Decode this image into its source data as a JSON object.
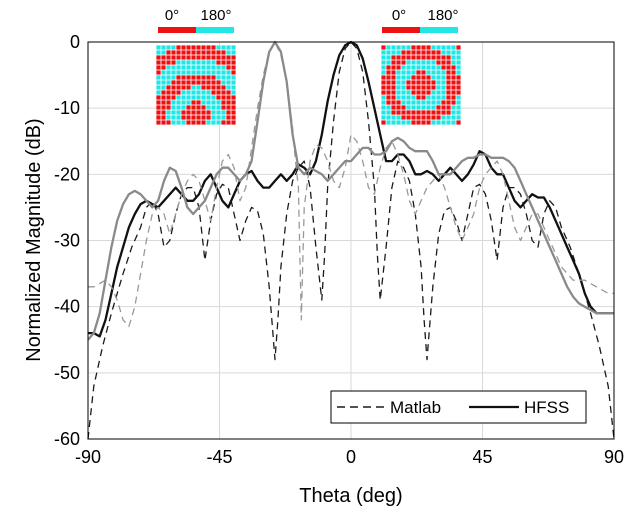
{
  "chart_data": {
    "type": "line",
    "xlabel": "Theta (deg)",
    "ylabel": "Normalized Magnitude (dB)",
    "xlim": [
      -90,
      90
    ],
    "ylim": [
      -60,
      0
    ],
    "xticks": [
      "-90",
      "-45",
      "0",
      "45",
      "90"
    ],
    "yticks": [
      "0",
      "-10",
      "-20",
      "-30",
      "-40",
      "-50",
      "-60"
    ],
    "grid": true,
    "legend": {
      "placement": "bottom-right",
      "entries": [
        {
          "label": "Matlab",
          "style": "dashed"
        },
        {
          "label": "HFSS",
          "style": "solid"
        }
      ]
    },
    "insets": [
      {
        "colorbar_labels": [
          "0°",
          "180°"
        ],
        "colors": {
          "zero": "#ee1111",
          "pi": "#22e5e5"
        },
        "pattern": "off-axis"
      },
      {
        "colorbar_labels": [
          "0°",
          "180°"
        ],
        "colors": {
          "zero": "#ee1111",
          "pi": "#22e5e5"
        },
        "pattern": "broadside"
      }
    ],
    "series": [
      {
        "group": "broadside",
        "source": "Matlab",
        "color": "#1a1a1a",
        "dash": "7,5",
        "width": 1.3,
        "x": [
          -90,
          -88,
          -85,
          -82,
          -80,
          -78,
          -75,
          -72,
          -70,
          -68,
          -66,
          -64,
          -62,
          -60,
          -58,
          -56,
          -54,
          -52,
          -50,
          -48,
          -46,
          -44,
          -42,
          -40,
          -38,
          -36,
          -34,
          -32,
          -30,
          -28,
          -26,
          -25,
          -24,
          -22,
          -20,
          -18,
          -16,
          -14,
          -12,
          -10,
          -9,
          -8,
          -6,
          -4,
          -2,
          0,
          2,
          4,
          6,
          8,
          9,
          10,
          12,
          14,
          16,
          18,
          20,
          22,
          24,
          25,
          26,
          28,
          30,
          32,
          34,
          36,
          38,
          40,
          42,
          44,
          46,
          48,
          50,
          52,
          54,
          56,
          58,
          60,
          62,
          64,
          66,
          68,
          70,
          72,
          75,
          78,
          80,
          82,
          85,
          88,
          90
        ],
        "y": [
          -60,
          -52,
          -46,
          -41,
          -38,
          -35,
          -31,
          -28,
          -25,
          -24,
          -26,
          -31,
          -30,
          -26,
          -23,
          -22,
          -22,
          -25,
          -33,
          -27,
          -23,
          -21.5,
          -22,
          -26,
          -30,
          -27,
          -25,
          -25.5,
          -29,
          -37,
          -48,
          -42,
          -34,
          -26,
          -21,
          -19,
          -18,
          -22,
          -31,
          -39,
          -32,
          -22,
          -12,
          -4.5,
          -1,
          0,
          -1,
          -4.5,
          -12,
          -22,
          -32,
          -39,
          -31,
          -22,
          -18,
          -19,
          -21,
          -26,
          -34,
          -42,
          -48,
          -37,
          -29,
          -25.5,
          -25,
          -27,
          -30,
          -26,
          -22,
          -21.5,
          -23,
          -27,
          -33,
          -25,
          -22,
          -22,
          -23,
          -26,
          -30,
          -31,
          -26,
          -24,
          -25,
          -28,
          -31,
          -35,
          -38,
          -41,
          -46,
          -52,
          -60
        ]
      },
      {
        "group": "broadside",
        "source": "HFSS",
        "color": "#111111",
        "dash": "",
        "width": 2.3,
        "x": [
          -90,
          -88,
          -86,
          -84,
          -82,
          -80,
          -78,
          -76,
          -74,
          -72,
          -70,
          -68,
          -66,
          -64,
          -62,
          -60,
          -58,
          -56,
          -54,
          -52,
          -50,
          -48,
          -46,
          -44,
          -42,
          -40,
          -38,
          -36,
          -34,
          -32,
          -30,
          -28,
          -26,
          -24,
          -22,
          -20,
          -18,
          -16,
          -14,
          -12,
          -10,
          -8,
          -6,
          -4,
          -2,
          0,
          2,
          4,
          6,
          8,
          10,
          12,
          14,
          16,
          18,
          20,
          22,
          24,
          26,
          28,
          30,
          32,
          34,
          36,
          38,
          40,
          42,
          44,
          46,
          48,
          50,
          52,
          54,
          56,
          58,
          60,
          62,
          64,
          66,
          68,
          70,
          72,
          74,
          76,
          78,
          80,
          82,
          84,
          86,
          88,
          90
        ],
        "y": [
          -44,
          -44,
          -44.5,
          -42,
          -38,
          -34,
          -31,
          -28,
          -26,
          -24.5,
          -24,
          -24.5,
          -25,
          -24,
          -23,
          -22,
          -23,
          -24,
          -24,
          -23,
          -21,
          -20,
          -22,
          -24,
          -25,
          -23,
          -21,
          -20,
          -19.5,
          -21,
          -22,
          -22,
          -21,
          -20,
          -21,
          -20,
          -18.5,
          -19,
          -20,
          -18,
          -14,
          -9,
          -5,
          -2,
          -0.5,
          0,
          -0.5,
          -2.5,
          -6,
          -10,
          -14,
          -18,
          -18,
          -17,
          -17,
          -18,
          -20,
          -20,
          -19.5,
          -20,
          -21,
          -20,
          -19,
          -20,
          -21,
          -20,
          -18.5,
          -16.5,
          -17,
          -19,
          -20,
          -20,
          -22,
          -24,
          -25,
          -24,
          -23,
          -23.5,
          -23.5,
          -25,
          -27,
          -29,
          -31,
          -33,
          -35,
          -38,
          -40,
          -41,
          -41,
          -41,
          -41
        ]
      },
      {
        "group": "off-axis",
        "source": "Matlab",
        "color": "#999999",
        "dash": "7,5",
        "width": 1.3,
        "x": [
          -90,
          -88,
          -86,
          -84,
          -82,
          -80,
          -78,
          -76,
          -74,
          -72,
          -70,
          -68,
          -66,
          -64,
          -62,
          -60,
          -58,
          -56,
          -54,
          -52,
          -50,
          -48,
          -46,
          -44,
          -42,
          -40,
          -38,
          -36,
          -34,
          -32,
          -30,
          -28,
          -26,
          -24,
          -22,
          -20,
          -19,
          -18,
          -17,
          -16,
          -14,
          -12,
          -10,
          -8,
          -6,
          -4,
          -2,
          0,
          2,
          4,
          6,
          8,
          10,
          12,
          14,
          16,
          18,
          20,
          22,
          24,
          26,
          28,
          30,
          32,
          34,
          36,
          38,
          40,
          42,
          44,
          46,
          48,
          50,
          52,
          54,
          56,
          58,
          60,
          62,
          64,
          66,
          68,
          70,
          72,
          74,
          76,
          78,
          80,
          82,
          84,
          86,
          88,
          90
        ],
        "y": [
          -37,
          -37,
          -36.5,
          -36,
          -37,
          -39,
          -42,
          -43,
          -40,
          -35,
          -30,
          -26,
          -25,
          -26,
          -29,
          -26,
          -23,
          -21,
          -20,
          -21,
          -24,
          -27,
          -22,
          -18,
          -17,
          -19,
          -24,
          -22,
          -16,
          -10,
          -5,
          -1.5,
          0,
          -2,
          -6,
          -13,
          -18,
          -22,
          -42,
          -25,
          -18,
          -15.5,
          -16,
          -18,
          -21,
          -22,
          -19,
          -14,
          -15,
          -18,
          -22,
          -23,
          -19,
          -16,
          -15,
          -17,
          -20,
          -24,
          -26,
          -24,
          -22,
          -21,
          -20,
          -22,
          -25,
          -28,
          -30,
          -28,
          -26,
          -22,
          -20,
          -19,
          -18,
          -20,
          -24,
          -28,
          -30,
          -28,
          -26,
          -26,
          -28,
          -30,
          -32,
          -34,
          -35,
          -36,
          -36,
          -36,
          -36.5,
          -37,
          -37.5,
          -38,
          -38
        ]
      },
      {
        "group": "off-axis",
        "source": "HFSS",
        "color": "#8a8a8a",
        "dash": "",
        "width": 2.3,
        "x": [
          -90,
          -88,
          -86,
          -84,
          -82,
          -80,
          -78,
          -76,
          -74,
          -72,
          -70,
          -68,
          -66,
          -64,
          -62,
          -60,
          -58,
          -56,
          -54,
          -52,
          -50,
          -48,
          -46,
          -44,
          -42,
          -40,
          -38,
          -36,
          -34,
          -32,
          -30,
          -28,
          -26,
          -24,
          -22,
          -20,
          -18,
          -16,
          -14,
          -12,
          -10,
          -8,
          -6,
          -4,
          -2,
          0,
          2,
          4,
          6,
          8,
          10,
          12,
          14,
          16,
          18,
          20,
          22,
          24,
          26,
          28,
          30,
          32,
          34,
          36,
          38,
          40,
          42,
          44,
          46,
          48,
          50,
          52,
          54,
          56,
          58,
          60,
          62,
          64,
          66,
          68,
          70,
          72,
          74,
          76,
          78,
          80,
          82,
          84,
          86,
          88,
          90
        ],
        "y": [
          -45,
          -44,
          -41,
          -36,
          -31,
          -27,
          -24.5,
          -23,
          -22.5,
          -23,
          -24,
          -25,
          -24,
          -21,
          -19,
          -19.5,
          -22,
          -25,
          -26,
          -25,
          -24,
          -22,
          -20,
          -19,
          -19,
          -20,
          -21,
          -20,
          -18,
          -12,
          -6,
          -1.5,
          0,
          -1.5,
          -6,
          -14,
          -19,
          -20,
          -19,
          -19.5,
          -20,
          -21,
          -20,
          -19,
          -18,
          -18,
          -17,
          -16,
          -16,
          -17,
          -17,
          -16.5,
          -15,
          -14.5,
          -15,
          -16,
          -16.5,
          -16.5,
          -16.5,
          -18,
          -20,
          -20,
          -20,
          -19,
          -18,
          -17.5,
          -17.5,
          -17,
          -17,
          -17.5,
          -17.5,
          -17.5,
          -18,
          -19,
          -21,
          -23,
          -25,
          -27,
          -29,
          -31,
          -33,
          -35,
          -37,
          -38.5,
          -39.5,
          -40,
          -40.5,
          -41,
          -41,
          -41,
          -41
        ]
      }
    ]
  }
}
